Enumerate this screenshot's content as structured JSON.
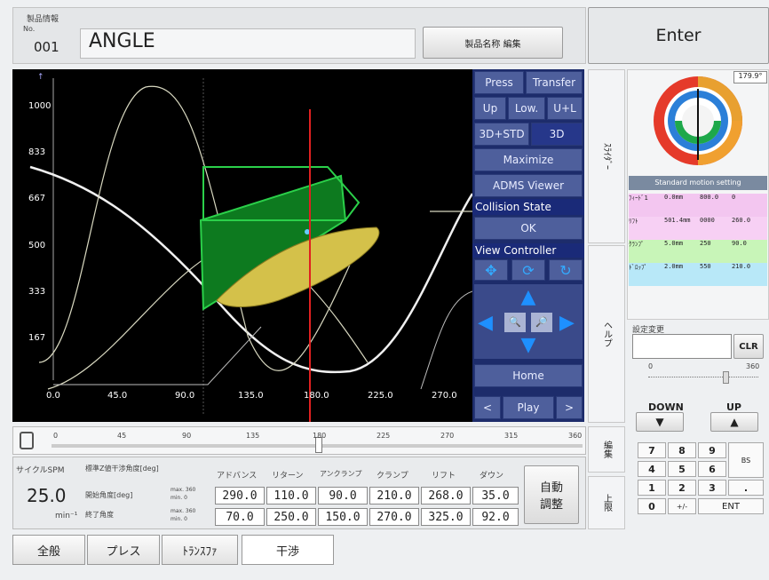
{
  "header": {
    "product_info_label": "製品情報",
    "no_label": "No.",
    "product_no": "001",
    "product_name": "ANGLE",
    "edit_name_button": "製品名称 編集",
    "enter_button": "Enter"
  },
  "plot": {
    "y_ticks": [
      "1000",
      "833",
      "667",
      "500",
      "333",
      "167"
    ],
    "x_ticks": [
      "0.0",
      "45.0",
      "90.0",
      "135.0",
      "180.0",
      "225.0",
      "270.0"
    ],
    "marker_angle": 180
  },
  "controls": {
    "press": "Press",
    "transfer": "Transfer",
    "up": "Up",
    "low": "Low.",
    "ul": "U+L",
    "std3d": "3D+STD",
    "d3": "3D",
    "maximize": "Maximize",
    "adms": "ADMS Viewer",
    "collision_state_label": "Collision State",
    "collision_state": "OK",
    "view_controller_label": "View Controller",
    "home": "Home",
    "prev": "<",
    "play": "Play",
    "next": ">"
  },
  "side_tabs": {
    "motion": "ｽﾗｲﾀﾞｰ",
    "help": "ヘルプ",
    "edit": "編集",
    "upper": "上限"
  },
  "right_panel": {
    "angle_readout": "179.9°",
    "motion_setting": "Standard motion setting",
    "table_rows": [
      [
        "ﾌｨｰﾄﾞ1",
        "0.0mm",
        "800.0",
        "0"
      ],
      [
        "ﾘﾌﾄ",
        "501.4mm",
        "0000",
        "260.0"
      ],
      [
        "ｸﾗﾝﾌﾟ",
        "5.0mm",
        "250",
        "90.0"
      ],
      [
        "ﾄﾞﾛｯﾌﾟ",
        "2.0mm",
        "550",
        "210.0"
      ]
    ],
    "set_change_label": "設定変更",
    "clr": "CLR",
    "slider_min": "0",
    "slider_max": "360",
    "down": "DOWN",
    "up": "UP",
    "keys": [
      "7",
      "8",
      "9",
      "BS",
      "4",
      "5",
      "6",
      "1",
      "2",
      "3",
      ".",
      "0",
      "+/-",
      "ENT"
    ]
  },
  "slider": {
    "ticks": [
      "0",
      "45",
      "90",
      "135",
      "180",
      "225",
      "270",
      "315",
      "360"
    ],
    "value": 180
  },
  "params": {
    "spm_label": "サイクルSPM",
    "spm_value": "25.0",
    "spm_unit": "min⁻¹",
    "std_angle_label": "標準Z値干渉角度[deg]",
    "start_angle_label": "開始角度[deg]",
    "end_angle_label": "終了角度",
    "minmax1": [
      "max. 360",
      "min. 0"
    ],
    "minmax2": [
      "max. 360",
      "min. 0"
    ],
    "columns": [
      "アドバンス",
      "リターン",
      "アンクランプ",
      "クランプ",
      "リフト",
      "ダウン"
    ],
    "row1": [
      "290.0",
      "110.0",
      "90.0",
      "210.0",
      "268.0",
      "35.0"
    ],
    "row2": [
      "70.0",
      "250.0",
      "150.0",
      "270.0",
      "325.0",
      "92.0"
    ],
    "auto_adjust": "自動\n調整"
  },
  "bottom_tabs": [
    "全般",
    "プレス",
    "ﾄﾗﾝｽﾌｧ",
    "干渉"
  ]
}
